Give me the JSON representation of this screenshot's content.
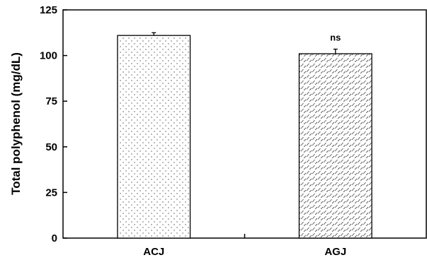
{
  "chart_data": {
    "type": "bar",
    "title": "",
    "xlabel": "",
    "ylabel": "Total polyphenol (mg/dL)",
    "categories": [
      "ACJ",
      "AGJ"
    ],
    "values": [
      111,
      101
    ],
    "errors": [
      1.5,
      2.5
    ],
    "ylim": [
      0,
      125
    ],
    "yticks": [
      0,
      25,
      50,
      75,
      100,
      125
    ],
    "ytick_labels": [
      "0",
      "25",
      "50",
      "75",
      "100",
      "125"
    ],
    "grid": false,
    "bar_patterns": [
      "dots",
      "diagonal-dashes"
    ],
    "annotations": [
      {
        "category": "AGJ",
        "text": "ns"
      }
    ]
  }
}
